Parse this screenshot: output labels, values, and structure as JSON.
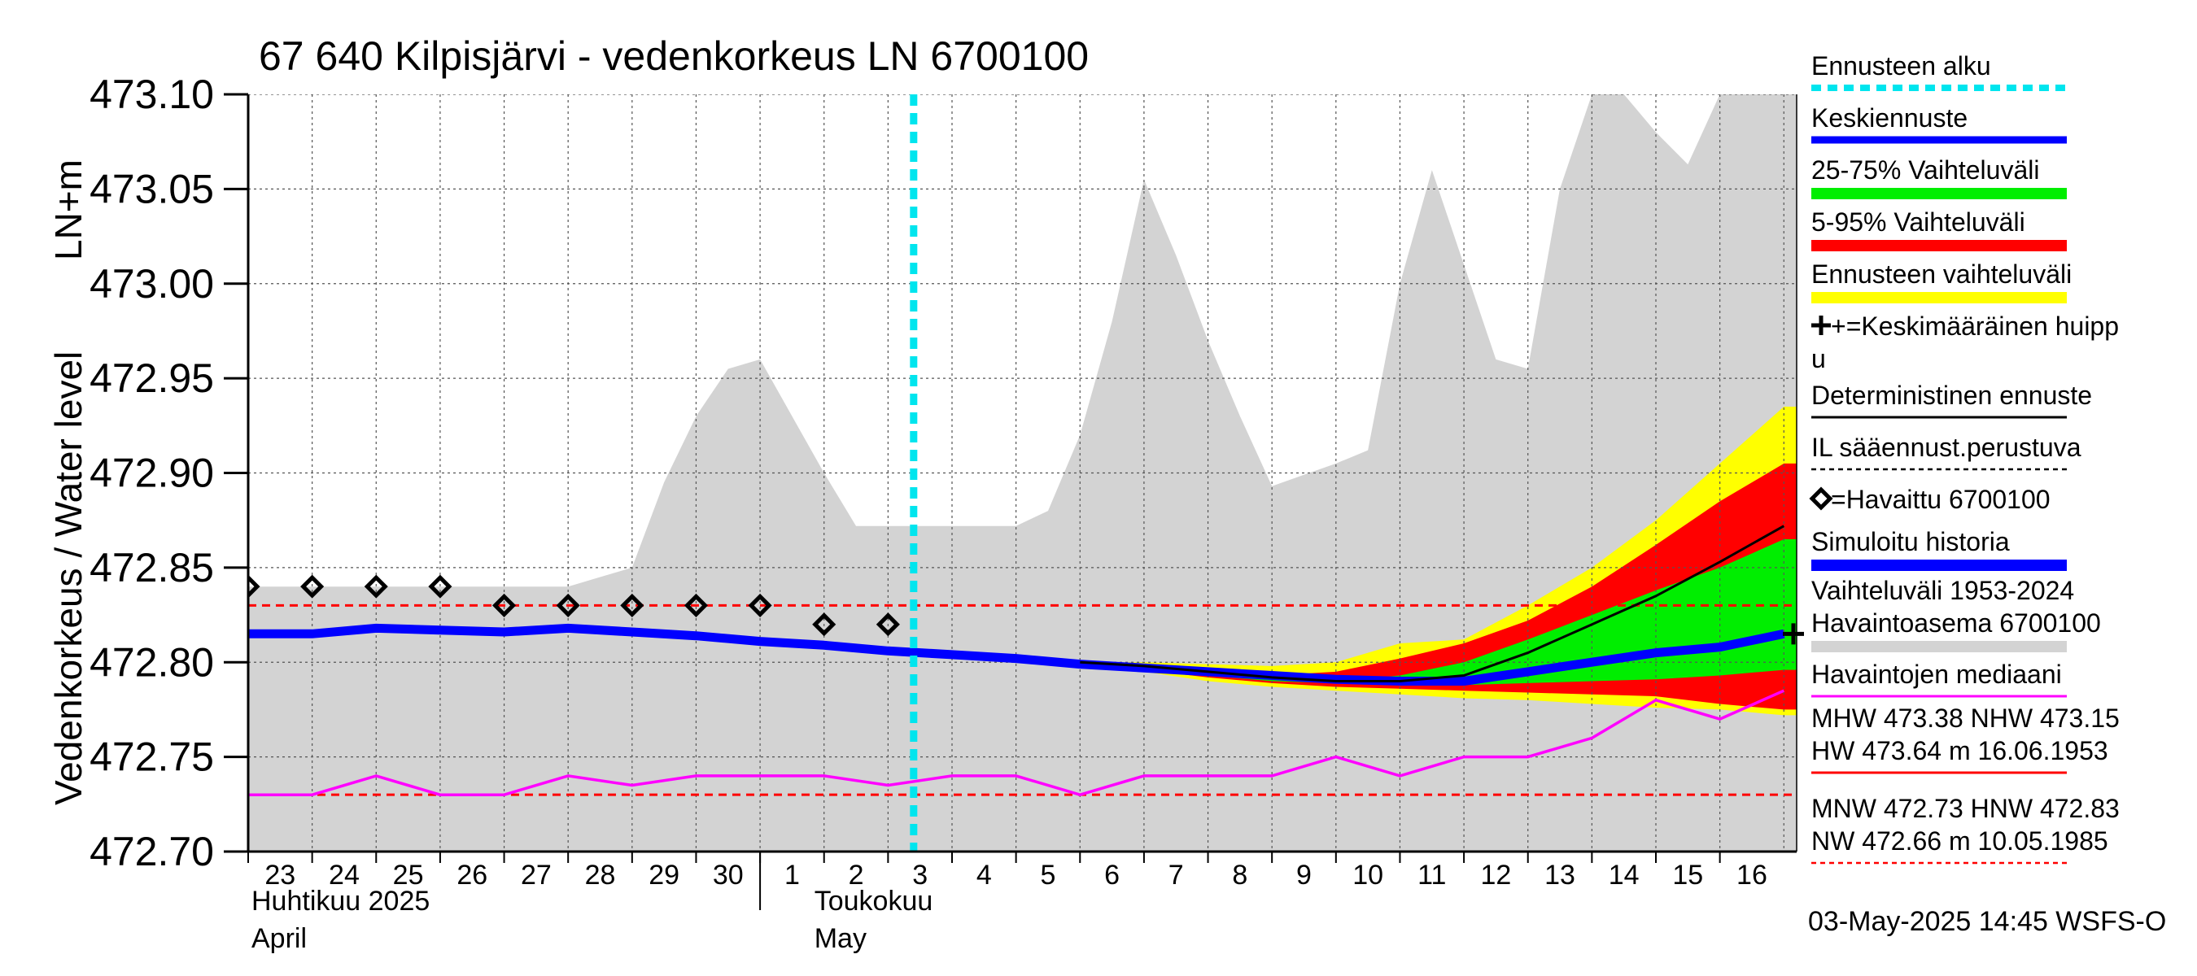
{
  "chart_data": {
    "type": "line",
    "title": "67 640 Kilpisjärvi - vedenkorkeus LN 6700100",
    "ylabel_top": "LN+m",
    "ylabel": "Vedenkorkeus / Water level",
    "ylim": [
      472.7,
      473.1
    ],
    "y_ticks": [
      "473.10",
      "473.05",
      "473.00",
      "472.95",
      "472.90",
      "472.85",
      "472.80",
      "472.75",
      "472.70"
    ],
    "x_days": [
      "23",
      "24",
      "25",
      "26",
      "27",
      "28",
      "29",
      "30",
      "1",
      "2",
      "3",
      "4",
      "5",
      "6",
      "7",
      "8",
      "9",
      "10",
      "11",
      "12",
      "13",
      "14",
      "15",
      "16"
    ],
    "month_labels": [
      {
        "fi": "Huhtikuu  2025",
        "en": "April"
      },
      {
        "fi": "Toukokuu",
        "en": "May"
      }
    ],
    "forecast_start_day": 10.4,
    "grey_band": {
      "x": [
        0,
        10,
        11,
        12,
        13,
        14,
        15,
        16,
        17,
        18,
        19,
        20,
        21,
        22,
        23,
        24,
        25,
        26,
        27,
        28,
        29,
        30,
        31,
        32,
        33,
        34,
        35,
        36,
        37,
        38,
        39,
        40,
        41,
        42,
        43,
        44,
        45,
        46,
        47,
        48
      ],
      "upper": [
        472.84,
        472.84,
        472.845,
        472.85,
        472.895,
        472.93,
        472.955,
        472.96,
        472.93,
        472.9,
        472.872,
        472.872,
        472.872,
        472.872,
        472.872,
        472.872,
        472.88,
        472.92,
        472.98,
        473.055,
        473.015,
        472.97,
        472.93,
        472.893,
        472.899,
        472.905,
        472.912,
        473.0,
        473.06,
        473.01,
        472.96,
        472.955,
        473.05,
        473.1,
        473.1,
        473.08,
        473.063,
        473.1,
        473.1,
        473.1
      ],
      "upper_x": [
        0,
        10,
        11,
        12,
        13,
        14,
        15,
        16,
        17,
        18,
        19,
        20,
        21,
        22,
        23,
        24,
        25,
        26,
        27,
        28,
        29,
        30,
        31,
        32,
        33,
        34,
        35,
        36,
        37,
        38,
        39,
        40,
        41,
        42,
        43,
        44,
        45,
        46,
        47,
        48
      ],
      "lower": 472.7
    },
    "forecast_x": [
      13,
      14,
      15,
      16,
      17,
      18,
      19,
      20,
      21,
      22,
      23,
      24
    ],
    "ennusteen_vaihteluvali": {
      "upper": [
        472.8,
        472.8,
        472.799,
        472.798,
        472.8,
        472.81,
        472.812,
        472.83,
        472.85,
        472.875,
        472.905,
        472.935
      ],
      "lower": [
        472.8,
        472.795,
        472.79,
        472.787,
        472.785,
        472.783,
        472.781,
        472.78,
        472.778,
        472.776,
        472.775,
        472.772
      ]
    },
    "band_5_95": {
      "upper": [
        472.8,
        472.798,
        472.795,
        472.793,
        472.795,
        472.802,
        472.81,
        472.822,
        472.84,
        472.862,
        472.885,
        472.905
      ],
      "lower": [
        472.8,
        472.796,
        472.792,
        472.789,
        472.787,
        472.786,
        472.785,
        472.784,
        472.783,
        472.782,
        472.778,
        472.775
      ]
    },
    "band_25_75": {
      "upper": [
        472.8,
        472.797,
        472.794,
        472.791,
        472.79,
        472.793,
        472.8,
        472.812,
        472.825,
        472.838,
        472.85,
        472.865
      ],
      "lower": [
        472.8,
        472.797,
        472.793,
        472.79,
        472.789,
        472.788,
        472.788,
        472.789,
        472.79,
        472.791,
        472.793,
        472.796
      ]
    },
    "deterministinen": {
      "x": [
        13,
        14,
        15,
        16,
        17,
        18,
        19,
        20,
        21,
        22,
        23,
        24
      ],
      "y": [
        472.8,
        472.798,
        472.795,
        472.792,
        472.79,
        472.79,
        472.793,
        472.805,
        472.82,
        472.835,
        472.853,
        472.872
      ]
    },
    "simuloitu_historia": {
      "x": [
        0,
        1,
        2,
        3,
        4,
        5,
        6,
        7,
        8,
        9,
        10,
        11,
        12,
        13,
        14,
        15,
        16,
        17,
        18,
        19,
        20,
        21,
        22,
        23,
        24
      ],
      "y": [
        472.815,
        472.815,
        472.818,
        472.817,
        472.816,
        472.818,
        472.816,
        472.814,
        472.811,
        472.809,
        472.806,
        472.804,
        472.802,
        472.799,
        472.797,
        472.795,
        472.793,
        472.791,
        472.79,
        472.79,
        472.795,
        472.8,
        472.805,
        472.808,
        472.815
      ]
    },
    "havaittu": {
      "x": [
        0,
        1,
        2,
        3,
        4,
        5,
        6,
        7,
        8,
        9,
        10
      ],
      "y": [
        472.84,
        472.84,
        472.84,
        472.84,
        472.83,
        472.83,
        472.83,
        472.83,
        472.83,
        472.82,
        472.82
      ]
    },
    "mediaani": {
      "x": [
        0,
        1,
        2,
        3,
        4,
        5,
        6,
        7,
        8,
        9,
        10,
        11,
        12,
        13,
        14,
        15,
        16,
        17,
        18,
        19,
        20,
        21,
        22,
        23,
        24
      ],
      "y": [
        472.73,
        472.73,
        472.74,
        472.73,
        472.73,
        472.74,
        472.735,
        472.74,
        472.74,
        472.74,
        472.735,
        472.74,
        472.74,
        472.73,
        472.74,
        472.74,
        472.74,
        472.75,
        472.74,
        472.75,
        472.75,
        472.76,
        472.78,
        472.77,
        472.785
      ]
    },
    "hnw_line": 472.83,
    "mnw_line": 472.73,
    "legend": [
      {
        "label": "Ennusteen alku",
        "color": "#00e5ee",
        "style": "dashed"
      },
      {
        "label": "Keskiennuste",
        "color": "#0000ff",
        "style": "solid"
      },
      {
        "label": "25-75% Vaihteluväli",
        "color": "#00ee00",
        "style": "thick"
      },
      {
        "label": "5-95% Vaihteluväli",
        "color": "#ff0000",
        "style": "thick"
      },
      {
        "label": "Ennusteen vaihteluväli",
        "color": "#ffff00",
        "style": "thick"
      },
      {
        "label": "+=Keskimääräinen huipp",
        "label2": "u",
        "color": "#000000",
        "style": "plus"
      },
      {
        "label": "Deterministinen ennuste",
        "color": "#000000",
        "style": "solid"
      },
      {
        "label": "IL sääennust.perustuva",
        "color": "#000000",
        "style": "dotted"
      },
      {
        "label": "=Havaittu 6700100",
        "color": "#000000",
        "style": "diamond"
      },
      {
        "label": "Simuloitu historia",
        "color": "#0000ff",
        "style": "thick"
      },
      {
        "label": "Vaihteluväli 1953-2024",
        "label2": " Havaintoasema 6700100",
        "color": "#d3d3d3",
        "style": "thick"
      },
      {
        "label": "Havaintojen mediaani",
        "color": "#ff00ff",
        "style": "solid"
      },
      {
        "label": "MHW 473.38 NHW 473.15",
        "label2": "HW 473.64 m 16.06.1953",
        "color": "#ff0000",
        "style": "solid"
      },
      {
        "label": "MNW 472.73 HNW 472.83",
        "label2": "NW 472.66 m 10.05.1985",
        "color": "#ff0000",
        "style": "dotted"
      }
    ],
    "timestamp": "03-May-2025 14:45 WSFS-O",
    "colors": {
      "grey": "#d3d3d3",
      "yellow": "#ffff00",
      "red": "#ff0000",
      "green": "#00ee00",
      "blue": "#0000ff",
      "magenta": "#ff00ff",
      "cyan": "#00e5ee"
    }
  }
}
